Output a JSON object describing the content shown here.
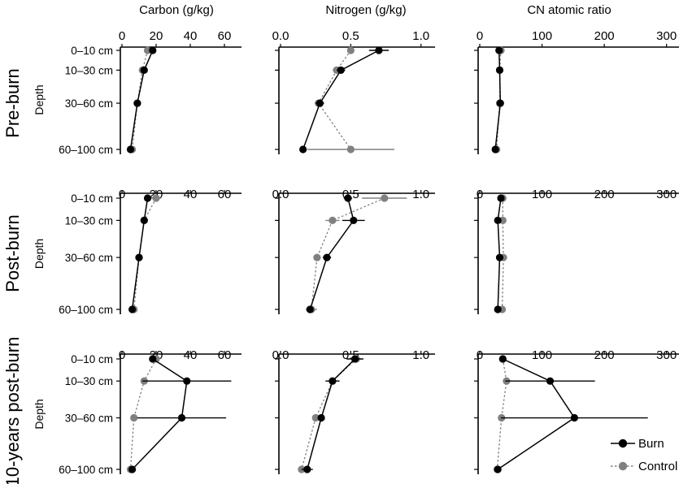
{
  "chart_data": {
    "type": "scatter",
    "columns": [
      {
        "title": "Carbon (g/kg)",
        "ticks": [
          "0",
          "20",
          "40",
          "60"
        ],
        "xlim": [
          0,
          70
        ]
      },
      {
        "title": "Nitrogen (g/kg)",
        "ticks": [
          "0.0",
          "0.5",
          "1.0"
        ],
        "xlim": [
          0,
          1.1
        ]
      },
      {
        "title": "CN atomic ratio",
        "ticks": [
          "0",
          "100",
          "200",
          "300"
        ],
        "xlim": [
          0,
          320
        ]
      }
    ],
    "tick_values": [
      [
        0,
        20,
        40,
        60
      ],
      [
        0,
        0.5,
        1.0
      ],
      [
        0,
        100,
        200,
        300
      ]
    ],
    "rows": [
      {
        "title": "Pre-burn"
      },
      {
        "title": "Post-burn"
      },
      {
        "title": "10-years post-burn"
      }
    ],
    "depths": [
      "0–10 cm",
      "10–30 cm",
      "30–60 cm",
      "60–100 cm"
    ],
    "depth_positions": [
      5,
      20,
      45,
      80
    ],
    "ylabel": "Depth",
    "legend": [
      {
        "name": "Burn",
        "color": "#000000"
      },
      {
        "name": "Control",
        "color": "#808080"
      }
    ],
    "panels": [
      [
        {
          "burn": [
            [
              18,
              2
            ],
            [
              13,
              1
            ],
            [
              9,
              1
            ],
            [
              5,
              1
            ]
          ],
          "control": [
            [
              15,
              2
            ],
            [
              12,
              1
            ],
            [
              9,
              1
            ],
            [
              6,
              1
            ]
          ]
        },
        {
          "burn": [
            [
              0.7,
              0.07
            ],
            [
              0.43,
              0.03
            ],
            [
              0.28,
              0.03
            ],
            [
              0.16,
              0.02
            ]
          ],
          "control": [
            [
              0.5,
              0.02
            ],
            [
              0.4,
              0.03
            ],
            [
              0.27,
              0.02
            ],
            [
              0.5,
              0.31
            ]
          ]
        },
        {
          "burn": [
            [
              31,
              3
            ],
            [
              32,
              3
            ],
            [
              33,
              3
            ],
            [
              25,
              2
            ]
          ],
          "control": [
            [
              34,
              3
            ],
            [
              32,
              3
            ],
            [
              32,
              3
            ],
            [
              27,
              2
            ]
          ]
        }
      ],
      [
        {
          "burn": [
            [
              15,
              2
            ],
            [
              13,
              1
            ],
            [
              10,
              1
            ],
            [
              6,
              1
            ]
          ],
          "control": [
            [
              20,
              3
            ],
            [
              13,
              1
            ],
            [
              10,
              1
            ],
            [
              7,
              1
            ]
          ]
        },
        {
          "burn": [
            [
              0.48,
              0.03
            ],
            [
              0.52,
              0.08
            ],
            [
              0.33,
              0.03
            ],
            [
              0.21,
              0.01
            ]
          ],
          "control": [
            [
              0.74,
              0.16
            ],
            [
              0.37,
              0.05
            ],
            [
              0.26,
              0.02
            ],
            [
              0.22,
              0.04
            ]
          ]
        },
        {
          "burn": [
            [
              34,
              3
            ],
            [
              29,
              2
            ],
            [
              32,
              2
            ],
            [
              29,
              2
            ]
          ],
          "control": [
            [
              37,
              3
            ],
            [
              37,
              3
            ],
            [
              38,
              3
            ],
            [
              36,
              3
            ]
          ]
        }
      ],
      [
        {
          "burn": [
            [
              18,
              2
            ],
            [
              38,
              26
            ],
            [
              35,
              26
            ],
            [
              6,
              1
            ]
          ],
          "control": [
            [
              20,
              2
            ],
            [
              13,
              1
            ],
            [
              7,
              1
            ],
            [
              5,
              1
            ]
          ]
        },
        {
          "burn": [
            [
              0.53,
              0.06
            ],
            [
              0.37,
              0.05
            ],
            [
              0.29,
              0.02
            ],
            [
              0.19,
              0.04
            ]
          ],
          "control": [
            [
              0.54,
              0.03
            ],
            [
              0.37,
              0.02
            ],
            [
              0.25,
              0.02
            ],
            [
              0.15,
              0.02
            ]
          ]
        },
        {
          "burn": [
            [
              37,
              3
            ],
            [
              113,
              72
            ],
            [
              152,
              118
            ],
            [
              29,
              2
            ]
          ],
          "control": [
            [
              37,
              3
            ],
            [
              43,
              3
            ],
            [
              35,
              2
            ],
            [
              28,
              2
            ]
          ]
        }
      ]
    ]
  }
}
